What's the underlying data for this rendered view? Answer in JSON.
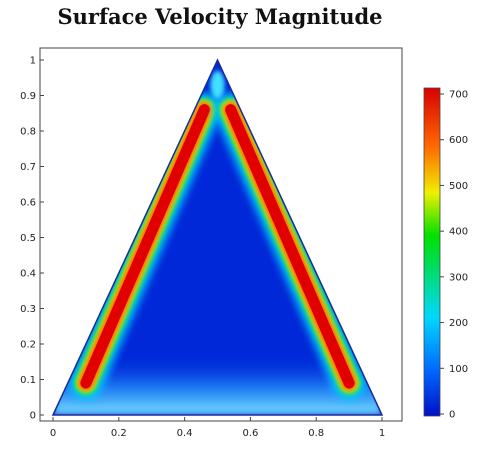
{
  "chart_data": {
    "type": "heatmap",
    "title": "Surface Velocity Magnitude",
    "xlabel": "",
    "ylabel": "",
    "xlim": [
      0,
      1
    ],
    "ylim": [
      0,
      1
    ],
    "x_ticks": [
      "0",
      "0.2",
      "0.4",
      "0.6",
      "0.8",
      "1"
    ],
    "y_ticks": [
      "0",
      "0.1",
      "0.2",
      "0.3",
      "0.4",
      "0.5",
      "0.6",
      "0.7",
      "0.8",
      "0.9",
      "1"
    ],
    "domain_shape": "triangle",
    "domain_vertices": [
      [
        0,
        0
      ],
      [
        0.5,
        1
      ],
      [
        1,
        0
      ]
    ],
    "field": "velocity magnitude: high (~700) in thin bands near the two slanted walls, low (~0-50) in the interior, moderate (~150-250) near the bottom wall",
    "colorbar": {
      "range": [
        0,
        700
      ],
      "ticks": [
        "0",
        "100",
        "200",
        "300",
        "400",
        "500",
        "600",
        "700"
      ],
      "colormap": [
        "#0010c8",
        "#0068ff",
        "#00d8ff",
        "#00e000",
        "#f0f000",
        "#ff6a00",
        "#d80000"
      ]
    },
    "grid": false
  }
}
